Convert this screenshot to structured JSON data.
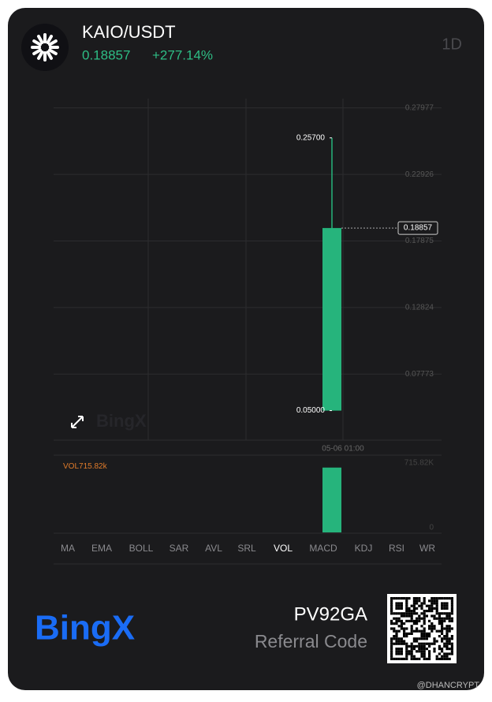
{
  "header": {
    "pair": "KAIO/USDT",
    "price": "0.18857",
    "change": "+277.14%",
    "timeframe": "1D"
  },
  "chart_data": {
    "type": "candlestick",
    "categories": [
      "05-06 01:00"
    ],
    "open": [
      0.05
    ],
    "high": [
      0.257
    ],
    "low": [
      0.05
    ],
    "close": [
      0.18857
    ],
    "high_labels": [
      "0.25700"
    ],
    "low_labels": [
      "0.05000"
    ],
    "color": "#26b47c",
    "ylim": [
      0.0276,
      0.2868
    ],
    "yticks": [
      0.27977,
      0.22926,
      0.17875,
      0.12824,
      0.07773
    ],
    "grid": true,
    "watermark": "BingX",
    "volume": {
      "name": "VOL",
      "values": [
        715820
      ],
      "value_labels": [
        "715.82k"
      ],
      "color": "#26b47c",
      "ylim": [
        0,
        740000
      ],
      "yticks": [
        {
          "value": 715820,
          "label": "715.82K"
        },
        0
      ]
    }
  },
  "indicators": {
    "items": [
      "MA",
      "EMA",
      "BOLL",
      "SAR",
      "AVL",
      "SRL",
      "VOL",
      "MACD",
      "KDJ",
      "RSI",
      "WR"
    ],
    "active": 6
  },
  "footer": {
    "brand": "BingX",
    "code": "PV92GA",
    "code_label": "Referral Code",
    "credit": "@DHANCRYPT"
  }
}
